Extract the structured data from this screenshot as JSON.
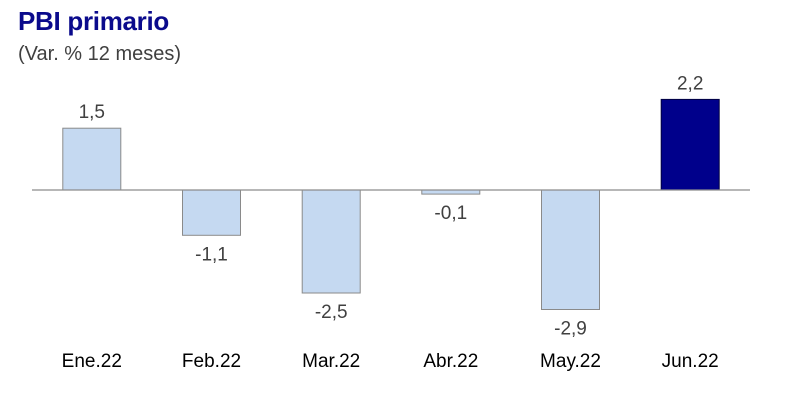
{
  "title": "PBI primario",
  "subtitle": "(Var. % 12 meses)",
  "colors": {
    "bar": "#c5d9f1",
    "bar_stroke": "#8a8a8a",
    "highlight": "#00008b",
    "highlight_stroke": "#000040",
    "axis": "#8c8c8c"
  },
  "chart_data": {
    "type": "bar",
    "categories": [
      "Ene.22",
      "Feb.22",
      "Mar.22",
      "Abr.22",
      "May.22",
      "Jun.22"
    ],
    "values": [
      1.5,
      -1.1,
      -2.5,
      -0.1,
      -2.9,
      2.2
    ],
    "labels": [
      "1,5",
      "-1,1",
      "-2,5",
      "-0,1",
      "-2,9",
      "2,2"
    ],
    "highlight": "Jun.22",
    "grid": false,
    "legend": "none"
  }
}
